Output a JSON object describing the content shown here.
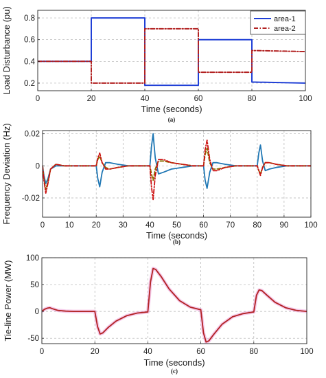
{
  "figure": {
    "captions": [
      "(a)",
      "(b)",
      "(c)"
    ]
  },
  "chart_data": [
    {
      "type": "line",
      "panel": "a",
      "xlabel": "Time (seconds)",
      "ylabel": "Load Disturbance (pu)",
      "xlim": [
        0,
        100
      ],
      "ylim": [
        0.13,
        0.87
      ],
      "xticks": [
        0,
        20,
        40,
        60,
        80,
        100
      ],
      "yticks": [
        0.2,
        0.4,
        0.6,
        0.8
      ],
      "ytick_labels": [
        "0.2",
        "0.4",
        "0.6",
        "0.8"
      ],
      "grid": true,
      "legend": "top-right",
      "series": [
        {
          "name": "area-1",
          "color": "#1f3fd6",
          "style": "solid",
          "x": [
            0,
            20,
            20,
            40,
            40,
            60,
            60,
            80,
            80,
            100
          ],
          "y": [
            0.4,
            0.4,
            0.8,
            0.8,
            0.18,
            0.18,
            0.6,
            0.6,
            0.21,
            0.2
          ]
        },
        {
          "name": "area-2",
          "color": "#b22222",
          "style": "dash-dot",
          "x": [
            0,
            20,
            20,
            40,
            40,
            60,
            60,
            80,
            80,
            100
          ],
          "y": [
            0.4,
            0.4,
            0.2,
            0.2,
            0.7,
            0.7,
            0.3,
            0.3,
            0.5,
            0.49
          ]
        }
      ]
    },
    {
      "type": "line",
      "panel": "b",
      "xlabel": "Time (seconds)",
      "ylabel": "Frequency Deviation (Hz)",
      "xlim": [
        0,
        100
      ],
      "ylim": [
        -0.032,
        0.022
      ],
      "xticks": [
        0,
        10,
        20,
        30,
        40,
        50,
        60,
        70,
        80,
        90,
        100
      ],
      "yticks": [
        -0.02,
        0,
        0.02
      ],
      "ytick_labels": [
        "-0.02",
        "0",
        "0.02"
      ],
      "grid": true,
      "series": [
        {
          "color": "#1f77b4",
          "style": "solid",
          "x": [
            0,
            0.5,
            1.2,
            2,
            3,
            5,
            8,
            20,
            20.6,
            21.3,
            22.2,
            23.5,
            25,
            28,
            32,
            36,
            40,
            40.6,
            41.2,
            42,
            43.2,
            45,
            48,
            52,
            56,
            60,
            60.6,
            61.3,
            62.3,
            63.5,
            65,
            68,
            72,
            76,
            80,
            80.6,
            81.2,
            82,
            83,
            84.5,
            87,
            91,
            95,
            100
          ],
          "y": [
            0,
            -0.006,
            -0.011,
            -0.008,
            -0.002,
            0,
            0,
            0,
            -0.008,
            -0.013,
            -0.004,
            0.002,
            0.002,
            0.001,
            0,
            0,
            0,
            0.012,
            0.02,
            0.005,
            -0.005,
            -0.004,
            -0.002,
            -0.001,
            0,
            0,
            -0.009,
            -0.014,
            -0.004,
            0.002,
            0.002,
            0.001,
            0,
            0,
            0,
            0.008,
            0.013,
            0.003,
            -0.003,
            -0.002,
            -0.001,
            0,
            0,
            0
          ]
        },
        {
          "color": "#8a6d00",
          "style": "dashed",
          "x": [
            0,
            0.5,
            1.2,
            2,
            3,
            5,
            8,
            20,
            20.6,
            21.3,
            22.2,
            23.5,
            25,
            28,
            32,
            36,
            40,
            40.6,
            41.2,
            42,
            43.2,
            45,
            48,
            52,
            56,
            60,
            60.6,
            61.3,
            62.3,
            63.5,
            65,
            68,
            72,
            76,
            80,
            80.6,
            81.2,
            82,
            83,
            84.5,
            87,
            91,
            95,
            100
          ],
          "y": [
            0,
            -0.008,
            -0.015,
            -0.01,
            -0.002,
            0.001,
            0,
            0,
            0.004,
            0.006,
            0.002,
            -0.001,
            -0.002,
            -0.001,
            0,
            0,
            0,
            -0.005,
            -0.009,
            -0.002,
            0.003,
            0.003,
            0.002,
            0.001,
            0,
            0,
            0.007,
            0.011,
            0.002,
            -0.002,
            -0.002,
            -0.001,
            0,
            0,
            0,
            -0.003,
            -0.005,
            -0.001,
            0.002,
            0.002,
            0.001,
            0,
            0,
            0
          ]
        },
        {
          "color": "#cc1111",
          "style": "dash-dot",
          "x": [
            0,
            0.5,
            1.2,
            2,
            3,
            5,
            8,
            20,
            20.6,
            21.3,
            22.2,
            23.5,
            25,
            28,
            32,
            36,
            40,
            40.6,
            41.2,
            42,
            43.2,
            45,
            48,
            52,
            56,
            60,
            60.6,
            61.3,
            62.3,
            63.5,
            65,
            68,
            72,
            76,
            80,
            80.6,
            81.2,
            82,
            83,
            84.5,
            87,
            91,
            95,
            100
          ],
          "y": [
            0,
            -0.009,
            -0.017,
            -0.011,
            -0.002,
            0.001,
            0,
            0,
            0.005,
            0.008,
            0.002,
            -0.002,
            -0.002,
            -0.001,
            0,
            0,
            0,
            -0.013,
            -0.021,
            -0.006,
            0.004,
            0.004,
            0.002,
            0.001,
            0,
            0,
            0.01,
            0.016,
            0.004,
            -0.003,
            -0.003,
            -0.001,
            0,
            0,
            0,
            -0.003,
            -0.006,
            -0.001,
            0.002,
            0.002,
            0.001,
            0,
            0,
            0
          ]
        }
      ]
    },
    {
      "type": "line",
      "panel": "c",
      "xlabel": "Time (seconds)",
      "ylabel": "Tie-line Power (MW)",
      "xlim": [
        0,
        100
      ],
      "ylim": [
        -60,
        100
      ],
      "xticks": [
        0,
        20,
        40,
        60,
        80,
        100
      ],
      "yticks": [
        -50,
        0,
        50,
        100
      ],
      "ytick_labels": [
        "-50",
        "0",
        "50",
        "100"
      ],
      "grid": true,
      "series": [
        {
          "color": "#b22222",
          "style": "solid",
          "x": [
            0,
            1,
            2,
            3,
            4,
            6,
            9,
            12,
            16,
            20,
            21,
            22,
            23,
            25,
            28,
            32,
            36,
            40,
            41,
            42,
            43,
            45,
            48,
            52,
            56,
            60,
            61,
            62,
            63,
            65,
            68,
            72,
            76,
            80,
            81,
            82,
            83,
            85,
            88,
            92,
            96,
            100
          ],
          "y": [
            0,
            4,
            6,
            7,
            5,
            2,
            0.5,
            0,
            0,
            0,
            -28,
            -42,
            -40,
            -30,
            -18,
            -8,
            -3,
            -1,
            55,
            80,
            78,
            65,
            42,
            20,
            8,
            3,
            -40,
            -57,
            -55,
            -42,
            -24,
            -10,
            -4,
            -1,
            30,
            40,
            39,
            30,
            17,
            7,
            2,
            0
          ]
        },
        {
          "color": "#e98ad0",
          "style": "solid-faint",
          "x": [
            0,
            1,
            2,
            3,
            4,
            6,
            9,
            12,
            16,
            20,
            21,
            22,
            23,
            25,
            28,
            32,
            36,
            40,
            41,
            42,
            43,
            45,
            48,
            52,
            56,
            60,
            61,
            62,
            63,
            65,
            68,
            72,
            76,
            80,
            81,
            82,
            83,
            85,
            88,
            92,
            96,
            100
          ],
          "y": [
            0,
            4,
            6,
            7,
            5,
            2,
            0.5,
            0,
            0,
            0,
            -28,
            -42,
            -40,
            -30,
            -18,
            -8,
            -3,
            -1,
            55,
            80,
            78,
            65,
            42,
            20,
            8,
            3,
            -40,
            -57,
            -55,
            -42,
            -24,
            -10,
            -4,
            -1,
            30,
            40,
            39,
            30,
            17,
            7,
            2,
            0
          ]
        }
      ]
    }
  ]
}
